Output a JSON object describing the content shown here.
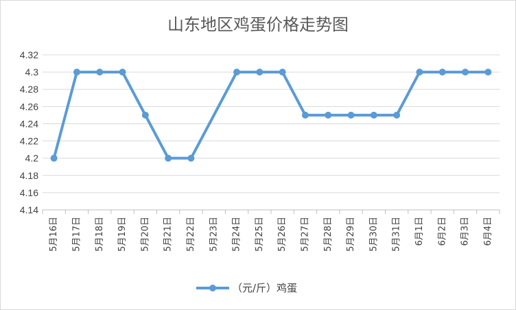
{
  "chart_data": {
    "type": "line",
    "title": "山东地区鸡蛋价格走势图",
    "categories": [
      "5月16日",
      "5月17日",
      "5月18日",
      "5月19日",
      "5月20日",
      "5月21日",
      "5月22日",
      "5月23日",
      "5月24日",
      "5月25日",
      "5月26日",
      "5月27日",
      "5月28日",
      "5月29日",
      "5月30日",
      "5月31日",
      "6月1日",
      "6月2日",
      "6月3日",
      "6月4日"
    ],
    "series": [
      {
        "name": "（元/斤）鸡蛋",
        "values": [
          4.2,
          4.3,
          4.3,
          4.3,
          4.25,
          4.2,
          4.2,
          null,
          4.3,
          4.3,
          4.3,
          4.25,
          4.25,
          4.25,
          4.25,
          4.25,
          4.3,
          4.3,
          4.3,
          4.3
        ],
        "color": "#5b9bd5"
      }
    ],
    "ylim": [
      4.14,
      4.32
    ],
    "yticks": [
      "4.14",
      "4.16",
      "4.18",
      "4.2",
      "4.22",
      "4.24",
      "4.26",
      "4.28",
      "4.3",
      "4.32"
    ],
    "grid": true,
    "legend": "bottom"
  }
}
